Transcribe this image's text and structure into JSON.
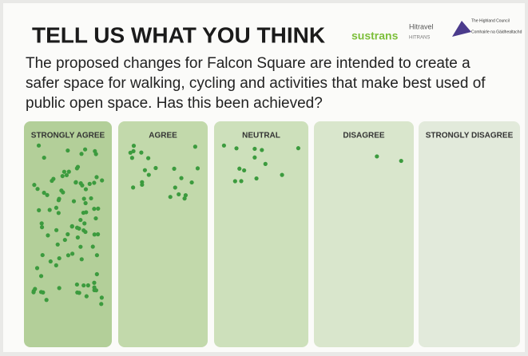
{
  "header": {
    "title": "TELL US WHAT YOU THINK",
    "logos": [
      "sustrans",
      "Hitravel",
      "HITRANS",
      "The Highland Council",
      "Comhairle na Gàidhealtachd"
    ]
  },
  "question": [
    "The proposed changes for Falcon Square are intended to create a",
    "safer space for walking, cycling and activities that make best used of",
    "public open space.  Has this been achieved?"
  ],
  "columns": [
    {
      "label": "STRONGLY AGREE",
      "votes": 95,
      "color": "#b3cf99"
    },
    {
      "label": "AGREE",
      "votes": 22,
      "color": "#c2d9ab"
    },
    {
      "label": "NEUTRAL",
      "votes": 13,
      "color": "#cde0bb"
    },
    {
      "label": "DISAGREE",
      "votes": 2,
      "color": "#d9e6cc"
    },
    {
      "label": "STRONGLY DISAGREE",
      "votes": 0,
      "color": "#e2eadb"
    }
  ],
  "dot_color": "#3c9b3e"
}
